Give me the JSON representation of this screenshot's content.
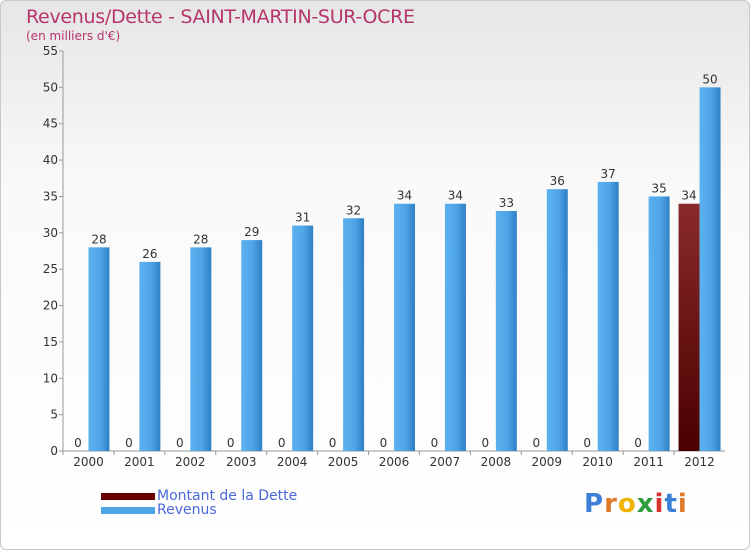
{
  "title": "Revenus/Dette - SAINT-MARTIN-SUR-OCRE",
  "subtitle": "(en milliers d'€)",
  "colors": {
    "dette": "#6b0000",
    "revenus": "#4ea5e6",
    "text": "#b6366b",
    "legend_text": "#4a69d8"
  },
  "logo": {
    "letters": [
      "P",
      "r",
      "o",
      "x",
      "i",
      "t",
      "i"
    ],
    "colors": [
      "#3b7fd6",
      "#e07a2a",
      "#f0b400",
      "#2e9e3c",
      "#d8342f",
      "#3b7fd6",
      "#e07a2a"
    ]
  },
  "chart_data": {
    "type": "bar",
    "title": "Revenus/Dette - SAINT-MARTIN-SUR-OCRE",
    "subtitle": "(en milliers d'€)",
    "categories": [
      "2000",
      "2001",
      "2002",
      "2003",
      "2004",
      "2005",
      "2006",
      "2007",
      "2008",
      "2009",
      "2010",
      "2011",
      "2012"
    ],
    "series": [
      {
        "name": "Montant de la Dette",
        "values": [
          0,
          0,
          0,
          0,
          0,
          0,
          0,
          0,
          0,
          0,
          0,
          0,
          34
        ]
      },
      {
        "name": "Revenus",
        "values": [
          28,
          26,
          28,
          29,
          31,
          32,
          34,
          34,
          33,
          36,
          37,
          35,
          50
        ]
      }
    ],
    "ylim": [
      0,
      55
    ],
    "yticks": [
      0,
      5,
      10,
      15,
      20,
      25,
      30,
      35,
      40,
      45,
      50,
      55
    ],
    "grid": false,
    "legend": "bottom-left"
  }
}
